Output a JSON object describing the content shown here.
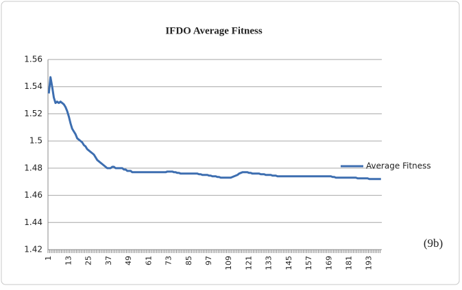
{
  "chart_data": {
    "type": "line",
    "title": "IFDO Average Fitness",
    "annotation": "(9b)",
    "categories": [
      "1",
      null,
      null,
      null,
      null,
      null,
      null,
      null,
      null,
      null,
      null,
      null,
      "13",
      null,
      null,
      null,
      null,
      null,
      null,
      null,
      null,
      null,
      null,
      null,
      "25",
      null,
      null,
      null,
      null,
      null,
      null,
      null,
      null,
      null,
      null,
      null,
      "37",
      null,
      null,
      null,
      null,
      null,
      null,
      null,
      null,
      null,
      null,
      null,
      "49",
      null,
      null,
      null,
      null,
      null,
      null,
      null,
      null,
      null,
      null,
      null,
      "61",
      null,
      null,
      null,
      null,
      null,
      null,
      null,
      null,
      null,
      null,
      null,
      "73",
      null,
      null,
      null,
      null,
      null,
      null,
      null,
      null,
      null,
      null,
      null,
      "85",
      null,
      null,
      null,
      null,
      null,
      null,
      null,
      null,
      null,
      null,
      null,
      "97",
      null,
      null,
      null,
      null,
      null,
      null,
      null,
      null,
      null,
      null,
      null,
      "109",
      null,
      null,
      null,
      null,
      null,
      null,
      null,
      null,
      null,
      null,
      null,
      "121",
      null,
      null,
      null,
      null,
      null,
      null,
      null,
      null,
      null,
      null,
      null,
      "133",
      null,
      null,
      null,
      null,
      null,
      null,
      null,
      null,
      null,
      null,
      null,
      "145",
      null,
      null,
      null,
      null,
      null,
      null,
      null,
      null,
      null,
      null,
      null,
      "157",
      null,
      null,
      null,
      null,
      null,
      null,
      null,
      null,
      null,
      null,
      null,
      "169",
      null,
      null,
      null,
      null,
      null,
      null,
      null,
      null,
      null,
      null,
      null,
      "181",
      null,
      null,
      null,
      null,
      null,
      null,
      null,
      null,
      null,
      null,
      null,
      "193",
      null,
      null,
      null,
      null,
      null,
      null,
      null
    ],
    "series": [
      {
        "name": "Average Fitness",
        "color": "#3d6eb0",
        "values": [
          1.535,
          1.547,
          1.54,
          1.532,
          1.528,
          1.529,
          1.528,
          1.529,
          1.528,
          1.527,
          1.525,
          1.522,
          1.518,
          1.513,
          1.509,
          1.507,
          1.505,
          1.502,
          1.501,
          1.5,
          1.499,
          1.497,
          1.496,
          1.494,
          1.493,
          1.492,
          1.491,
          1.49,
          1.488,
          1.486,
          1.485,
          1.484,
          1.483,
          1.482,
          1.481,
          1.48,
          1.48,
          1.48,
          1.481,
          1.481,
          1.48,
          1.48,
          1.48,
          1.48,
          1.48,
          1.479,
          1.479,
          1.478,
          1.478,
          1.478,
          1.477,
          1.477,
          1.477,
          1.477,
          1.477,
          1.477,
          1.477,
          1.477,
          1.477,
          1.477,
          1.477,
          1.477,
          1.477,
          1.477,
          1.477,
          1.477,
          1.477,
          1.477,
          1.477,
          1.477,
          1.477,
          1.4775,
          1.4775,
          1.4775,
          1.4775,
          1.477,
          1.477,
          1.4765,
          1.4765,
          1.476,
          1.476,
          1.476,
          1.476,
          1.476,
          1.476,
          1.476,
          1.476,
          1.476,
          1.476,
          1.476,
          1.4755,
          1.4755,
          1.475,
          1.475,
          1.475,
          1.475,
          1.4745,
          1.4745,
          1.474,
          1.474,
          1.474,
          1.4735,
          1.4735,
          1.473,
          1.473,
          1.473,
          1.473,
          1.473,
          1.473,
          1.473,
          1.4735,
          1.474,
          1.4745,
          1.475,
          1.476,
          1.4765,
          1.477,
          1.477,
          1.477,
          1.477,
          1.4765,
          1.4765,
          1.476,
          1.476,
          1.476,
          1.476,
          1.476,
          1.4755,
          1.4755,
          1.4755,
          1.475,
          1.475,
          1.475,
          1.475,
          1.4745,
          1.4745,
          1.4745,
          1.474,
          1.474,
          1.474,
          1.474,
          1.474,
          1.474,
          1.474,
          1.474,
          1.474,
          1.474,
          1.474,
          1.474,
          1.474,
          1.474,
          1.474,
          1.474,
          1.474,
          1.474,
          1.474,
          1.474,
          1.474,
          1.474,
          1.474,
          1.474,
          1.474,
          1.474,
          1.474,
          1.474,
          1.474,
          1.474,
          1.474,
          1.474,
          1.474,
          1.4735,
          1.4735,
          1.473,
          1.473,
          1.473,
          1.473,
          1.473,
          1.473,
          1.473,
          1.473,
          1.473,
          1.473,
          1.473,
          1.473,
          1.473,
          1.4725,
          1.4725,
          1.4725,
          1.4725,
          1.4725,
          1.4725,
          1.4725,
          1.472,
          1.472,
          1.472,
          1.472,
          1.472,
          1.472,
          1.472,
          1.472
        ]
      }
    ],
    "ylim": [
      1.42,
      1.56
    ],
    "yticks": [
      1.42,
      1.44,
      1.46,
      1.48,
      1.5,
      1.52,
      1.54,
      1.56
    ],
    "grid": true,
    "legend": "right"
  }
}
